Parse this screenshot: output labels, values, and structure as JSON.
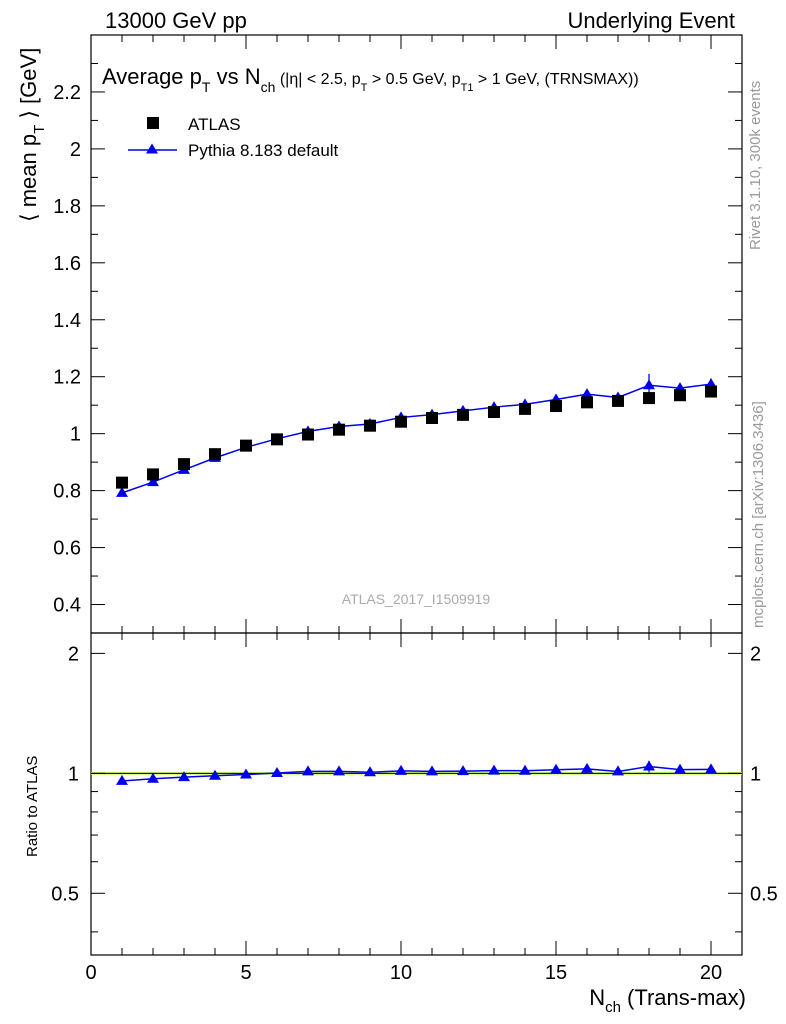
{
  "header": {
    "left": "13000 GeV pp",
    "right": "Underlying Event"
  },
  "title": {
    "main": "Average p",
    "sub_T": "T",
    "vs": " vs N",
    "sub_ch": "ch",
    "cuts_a": " (|η| < 2.5, p",
    "cuts_b": " > 0.5 GeV, p",
    "sub_T1": "T1",
    "cuts_c": " > 1 GeV, (TRNSMAX))"
  },
  "side_labels": {
    "rivet": "Rivet 3.1.10,  300k events",
    "mcplots": "mcplots.cern.ch [arXiv:1306.3436]"
  },
  "watermark": "ATLAS_2017_I1509919",
  "ratio_ylabel": "Ratio to ATLAS",
  "xlabel": {
    "n": "N",
    "sub": "ch",
    "rest": " (Trans-max)"
  },
  "ylabel": {
    "pre": "⟨ mean p",
    "sub": "T",
    "post": " ⟩ [GeV]"
  },
  "legend": [
    {
      "label": "ATLAS",
      "marker": "square",
      "color": "#000000"
    },
    {
      "label": "Pythia 8.183 default",
      "marker": "triangle",
      "color": "#0000ee"
    }
  ],
  "chart_data": {
    "type": "scatter",
    "title": "Average pT vs Nch (|η| < 2.5, pT > 0.5 GeV, pT1 > 1 GeV, (TRNSMAX))",
    "xlabel": "Nch (Trans-max)",
    "ylabel": "⟨ mean pT ⟩ [GeV]",
    "xlim": [
      0,
      21
    ],
    "ylim": [
      0.3,
      2.4
    ],
    "ratio_ylim": [
      0.35,
      2.25
    ],
    "xticks": [
      0,
      5,
      10,
      15,
      20
    ],
    "yticks": [
      0.4,
      0.6,
      0.8,
      1,
      1.2,
      1.4,
      1.6,
      1.8,
      2,
      2.2
    ],
    "ytick_labels": [
      "0.4",
      "0.6",
      "0.8",
      "1",
      "1.2",
      "1.4",
      "1.6",
      "1.8",
      "2",
      "2.2"
    ],
    "ratio_yticks": [
      0.5,
      1,
      2
    ],
    "ratio_ytick_labels": [
      "0.5",
      "1",
      "2"
    ],
    "x": [
      1,
      2,
      3,
      4,
      5,
      6,
      7,
      8,
      9,
      10,
      11,
      12,
      13,
      14,
      15,
      16,
      17,
      18,
      19,
      20
    ],
    "series": [
      {
        "name": "ATLAS",
        "values": [
          0.828,
          0.857,
          0.893,
          0.928,
          0.958,
          0.98,
          0.997,
          1.014,
          1.028,
          1.042,
          1.055,
          1.066,
          1.076,
          1.087,
          1.097,
          1.11,
          1.115,
          1.125,
          1.135,
          1.148
        ]
      },
      {
        "name": "Pythia 8.183 default",
        "values": [
          0.792,
          0.83,
          0.873,
          0.915,
          0.952,
          0.982,
          1.008,
          1.025,
          1.034,
          1.057,
          1.067,
          1.08,
          1.093,
          1.103,
          1.12,
          1.139,
          1.127,
          1.17,
          1.16,
          1.174
        ],
        "errors": [
          0.004,
          0.004,
          0.004,
          0.004,
          0.004,
          0.004,
          0.004,
          0.005,
          0.005,
          0.006,
          0.006,
          0.007,
          0.008,
          0.009,
          0.01,
          0.012,
          0.015,
          0.04,
          0.012,
          0.02
        ]
      }
    ],
    "ratio": {
      "name": "Pythia 8.183 default / ATLAS",
      "values": [
        0.957,
        0.969,
        0.978,
        0.986,
        0.993,
        1.002,
        1.011,
        1.011,
        1.006,
        1.014,
        1.011,
        1.013,
        1.016,
        1.015,
        1.021,
        1.026,
        1.011,
        1.04,
        1.022,
        1.023
      ],
      "errors": [
        0.004,
        0.004,
        0.004,
        0.004,
        0.004,
        0.004,
        0.004,
        0.005,
        0.005,
        0.006,
        0.006,
        0.007,
        0.008,
        0.009,
        0.01,
        0.012,
        0.015,
        0.035,
        0.011,
        0.017
      ]
    }
  }
}
